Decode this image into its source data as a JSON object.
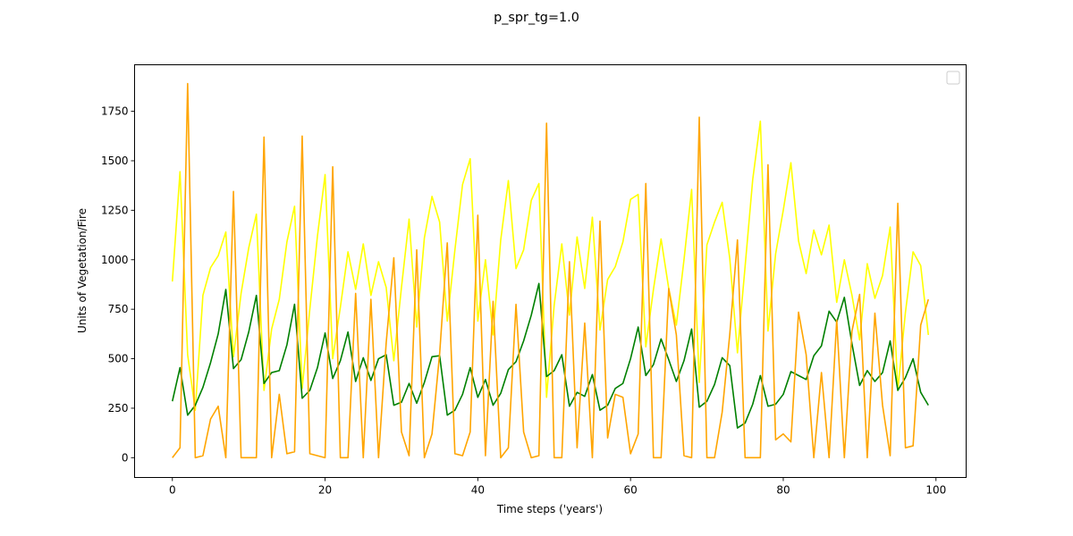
{
  "chart_data": {
    "type": "line",
    "title": "p_spr_tg=1.0",
    "xlabel": "Time steps ('years')",
    "ylabel": "Units of Vegetation/Fire",
    "xlim": [
      -4.95,
      103.95
    ],
    "ylim": [
      -100,
      1985
    ],
    "xticks": [
      0,
      20,
      40,
      60,
      80,
      100
    ],
    "yticks": [
      0,
      250,
      500,
      750,
      1000,
      1250,
      1500,
      1750
    ],
    "grid": false,
    "legend": {
      "placement": "top-right",
      "entries": []
    },
    "x": [
      0,
      1,
      2,
      3,
      4,
      5,
      6,
      7,
      8,
      9,
      10,
      11,
      12,
      13,
      14,
      15,
      16,
      17,
      18,
      19,
      20,
      21,
      22,
      23,
      24,
      25,
      26,
      27,
      28,
      29,
      30,
      31,
      32,
      33,
      34,
      35,
      36,
      37,
      38,
      39,
      40,
      41,
      42,
      43,
      44,
      45,
      46,
      47,
      48,
      49,
      50,
      51,
      52,
      53,
      54,
      55,
      56,
      57,
      58,
      59,
      60,
      61,
      62,
      63,
      64,
      65,
      66,
      67,
      68,
      69,
      70,
      71,
      72,
      73,
      74,
      75,
      76,
      77,
      78,
      79,
      80,
      81,
      82,
      83,
      84,
      85,
      86,
      87,
      88,
      89,
      90,
      91,
      92,
      93,
      94,
      95,
      96,
      97,
      98,
      99
    ],
    "series": [
      {
        "color": "#ffff00",
        "values": [
          890,
          1445,
          520,
          240,
          820,
          960,
          1020,
          1140,
          510,
          830,
          1060,
          1230,
          340,
          650,
          800,
          1090,
          1270,
          350,
          750,
          1120,
          1430,
          500,
          760,
          1040,
          850,
          1080,
          820,
          990,
          860,
          490,
          860,
          1205,
          660,
          1110,
          1320,
          1190,
          690,
          1050,
          1380,
          1510,
          690,
          1000,
          620,
          1100,
          1400,
          955,
          1050,
          1300,
          1385,
          305,
          770,
          1080,
          720,
          1115,
          855,
          1215,
          645,
          900,
          965,
          1090,
          1305,
          1330,
          560,
          850,
          1105,
          855,
          670,
          1000,
          1355,
          380,
          1075,
          1190,
          1290,
          1005,
          530,
          965,
          1405,
          1700,
          640,
          1030,
          1250,
          1490,
          1095,
          930,
          1150,
          1025,
          1175,
          785,
          1000,
          820,
          595,
          980,
          805,
          920,
          1165,
          340,
          735,
          1040,
          970,
          620
        ]
      },
      {
        "color": "#008000",
        "values": [
          285,
          455,
          215,
          265,
          355,
          480,
          625,
          850,
          450,
          495,
          635,
          820,
          375,
          430,
          440,
          570,
          775,
          300,
          340,
          455,
          630,
          400,
          490,
          635,
          385,
          505,
          390,
          500,
          520,
          265,
          280,
          375,
          275,
          380,
          510,
          515,
          215,
          240,
          320,
          455,
          305,
          395,
          265,
          325,
          445,
          485,
          590,
          720,
          880,
          410,
          440,
          520,
          260,
          330,
          310,
          420,
          240,
          265,
          350,
          375,
          500,
          660,
          415,
          470,
          600,
          495,
          385,
          490,
          650,
          255,
          285,
          370,
          505,
          465,
          150,
          175,
          270,
          415,
          260,
          270,
          320,
          435,
          415,
          395,
          515,
          565,
          740,
          685,
          810,
          575,
          365,
          440,
          385,
          430,
          590,
          340,
          405,
          500,
          330,
          265
        ]
      },
      {
        "color": "#ffa500",
        "values": [
          0,
          50,
          1890,
          0,
          10,
          195,
          260,
          0,
          1345,
          0,
          0,
          0,
          1620,
          0,
          320,
          20,
          30,
          1625,
          20,
          10,
          0,
          1470,
          0,
          0,
          830,
          0,
          800,
          0,
          580,
          1010,
          130,
          10,
          1050,
          0,
          120,
          525,
          1085,
          20,
          10,
          130,
          1225,
          10,
          790,
          0,
          50,
          775,
          130,
          0,
          10,
          1690,
          0,
          0,
          990,
          50,
          680,
          0,
          1195,
          100,
          320,
          305,
          20,
          120,
          1385,
          0,
          0,
          855,
          620,
          10,
          0,
          1720,
          0,
          0,
          230,
          625,
          1100,
          0,
          0,
          0,
          1480,
          90,
          120,
          80,
          735,
          520,
          0,
          430,
          0,
          695,
          0,
          640,
          825,
          0,
          730,
          265,
          10,
          1285,
          50,
          60,
          670,
          800
        ]
      }
    ]
  }
}
